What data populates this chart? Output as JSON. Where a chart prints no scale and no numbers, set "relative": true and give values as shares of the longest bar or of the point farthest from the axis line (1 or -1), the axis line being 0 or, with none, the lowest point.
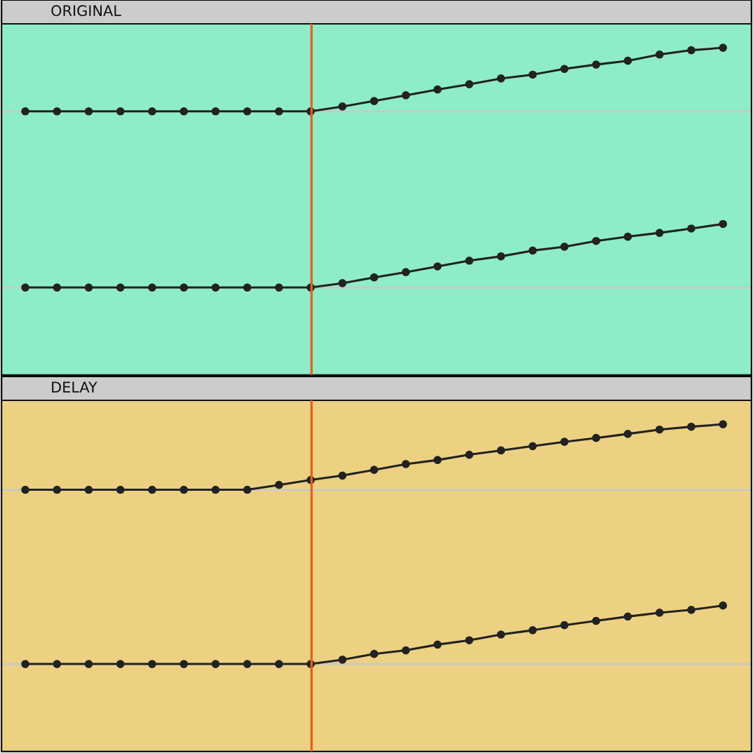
{
  "chart_data": [
    {
      "type": "line",
      "title": "ORIGINAL",
      "relative": true,
      "marker": "circle",
      "categories": [
        null,
        null,
        null,
        null,
        null,
        null,
        null,
        null,
        null,
        null,
        null,
        null,
        null,
        null,
        null,
        null,
        null,
        null,
        null,
        null,
        null,
        null,
        null
      ],
      "ref_lines": [
        {
          "axis": "y",
          "value": 0.735,
          "color": "#c8c8c8"
        },
        {
          "axis": "y",
          "value": 0,
          "color": "#c8c8c8"
        }
      ],
      "series": [
        {
          "color": "#222222",
          "values": [
            0.735,
            0.735,
            0.735,
            0.735,
            0.735,
            0.735,
            0.735,
            0.735,
            0.735,
            0.735,
            0.755,
            0.778,
            0.802,
            0.826,
            0.848,
            0.872,
            0.888,
            0.912,
            0.93,
            0.946,
            0.972,
            0.99,
            1
          ]
        },
        {
          "color": "#222222",
          "values": [
            0,
            0,
            0,
            0,
            0,
            0,
            0,
            0,
            0,
            0,
            0.018,
            0.042,
            0.064,
            0.088,
            0.112,
            0.13,
            0.154,
            0.17,
            0.194,
            0.212,
            0.228,
            0.246,
            0.265
          ]
        }
      ]
    },
    {
      "type": "line",
      "title": "DELAY",
      "relative": true,
      "marker": "circle",
      "categories": [
        null,
        null,
        null,
        null,
        null,
        null,
        null,
        null,
        null,
        null,
        null,
        null,
        null,
        null,
        null,
        null,
        null,
        null,
        null,
        null,
        null,
        null,
        null
      ],
      "ref_lines": [
        {
          "axis": "y",
          "value": 0.727,
          "color": "#c8c8c8"
        },
        {
          "axis": "y",
          "value": 0,
          "color": "#c8c8c8"
        }
      ],
      "series": [
        {
          "color": "#222222",
          "values": [
            0.727,
            0.727,
            0.727,
            0.727,
            0.727,
            0.727,
            0.727,
            0.727,
            0.747,
            0.768,
            0.786,
            0.81,
            0.834,
            0.851,
            0.873,
            0.891,
            0.909,
            0.927,
            0.943,
            0.96,
            0.978,
            0.99,
            1
          ]
        },
        {
          "color": "#222222",
          "values": [
            0,
            0,
            0,
            0,
            0,
            0,
            0,
            0,
            0,
            0,
            0.018,
            0.042,
            0.057,
            0.081,
            0.099,
            0.123,
            0.141,
            0.162,
            0.18,
            0.198,
            0.214,
            0.226,
            0.244
          ]
        }
      ]
    }
  ]
}
